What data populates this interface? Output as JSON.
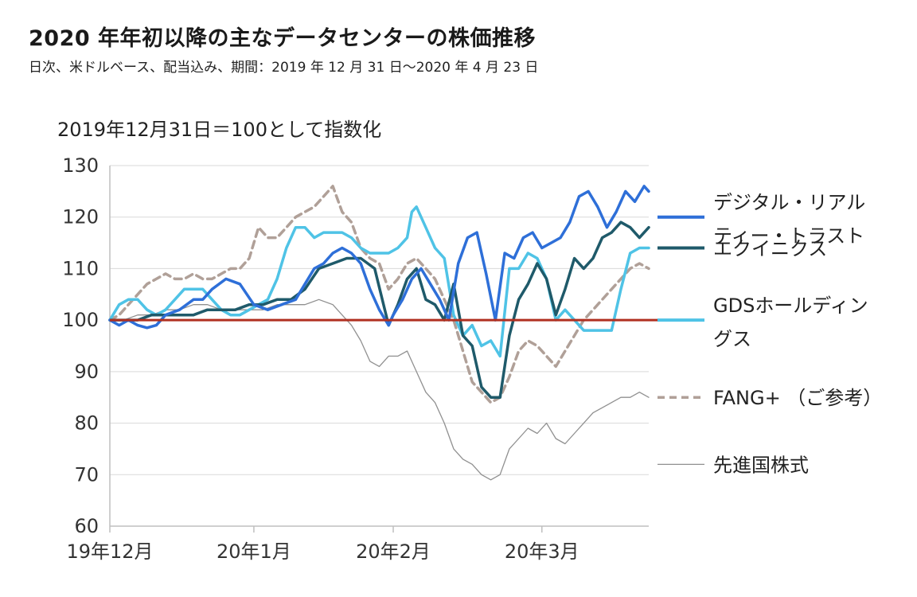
{
  "chart_data": {
    "type": "line",
    "title": "2020 年年初以降の主なデータセンターの株価推移",
    "subtitle": "日次、米ドルベース、配当込み、期間：2019 年 12 月 31 日～2020 年 4 月 23 日",
    "ylabel": "2019年12月31日＝100として指数化",
    "ylim": [
      60,
      130
    ],
    "yticks": [
      "130",
      "120",
      "110",
      "100",
      "90",
      "80",
      "70",
      "60"
    ],
    "xlim": [
      0,
      116
    ],
    "xticks": [
      {
        "label": "19年12月",
        "x": 0
      },
      {
        "label": "20年1月",
        "x": 31
      },
      {
        "label": "20年2月",
        "x": 61
      },
      {
        "label": "20年3月",
        "x": 93
      }
    ],
    "baseline": 100,
    "baseline_color": "#b03020",
    "legend_position": "right",
    "series": [
      {
        "name": "デジタル・リアルティー・トラスト",
        "name_lines": [
          "デジタル・リアル",
          "ティー・トラスト"
        ],
        "color": "#2e6fd8",
        "style": "solid",
        "x": [
          0,
          2,
          4,
          6,
          8,
          10,
          12,
          15,
          18,
          20,
          22,
          25,
          28,
          31,
          34,
          37,
          40,
          42,
          44,
          46,
          48,
          50,
          52,
          54,
          56,
          58,
          60,
          61,
          63,
          65,
          67,
          69,
          71,
          73,
          75,
          77,
          79,
          81,
          83,
          85,
          87,
          89,
          91,
          93,
          95,
          97,
          99,
          101,
          103,
          105,
          107,
          109,
          111,
          113,
          115,
          116
        ],
        "values": [
          100,
          99,
          100,
          99,
          98.5,
          99,
          101,
          102,
          104,
          104,
          106,
          108,
          107,
          103,
          102,
          103,
          104,
          107,
          110,
          111,
          113,
          114,
          113,
          111,
          106,
          102,
          99,
          101,
          104,
          108,
          110,
          107,
          104,
          100,
          111,
          116,
          117,
          109,
          100,
          113,
          112,
          116,
          117,
          114,
          115,
          116,
          119,
          124,
          125,
          122,
          118,
          121,
          125,
          123,
          126,
          125
        ],
        "legend_y": 120
      },
      {
        "name": "エクイニクス",
        "name_lines": [
          "エクイニクス"
        ],
        "color": "#1f5a6a",
        "style": "solid",
        "x": [
          0,
          3,
          6,
          9,
          12,
          15,
          18,
          21,
          24,
          27,
          30,
          33,
          36,
          39,
          42,
          45,
          48,
          51,
          54,
          57,
          60,
          62,
          64,
          66,
          68,
          70,
          72,
          74,
          76,
          78,
          80,
          82,
          84,
          86,
          88,
          90,
          92,
          94,
          96,
          98,
          100,
          102,
          104,
          106,
          108,
          110,
          112,
          114,
          116
        ],
        "values": [
          100,
          100,
          100,
          101,
          101,
          101,
          101,
          102,
          102,
          102,
          103,
          103,
          104,
          104,
          106,
          110,
          111,
          112,
          112,
          110,
          99,
          103,
          108,
          110,
          104,
          103,
          100,
          107,
          97,
          95,
          87,
          85,
          85,
          97,
          104,
          107,
          111,
          108,
          101,
          106,
          112,
          110,
          112,
          116,
          117,
          119,
          118,
          116,
          118
        ],
        "legend_y": 114
      },
      {
        "name": "GDSホールディングス",
        "name_lines": [
          "GDSホールディン",
          "グス"
        ],
        "color": "#4fc3e6",
        "style": "solid",
        "x": [
          0,
          2,
          4,
          6,
          8,
          10,
          12,
          14,
          16,
          18,
          20,
          22,
          24,
          26,
          28,
          30,
          32,
          34,
          36,
          38,
          40,
          42,
          44,
          46,
          48,
          50,
          52,
          54,
          56,
          58,
          60,
          62,
          64,
          65,
          66,
          68,
          70,
          72,
          74,
          76,
          78,
          80,
          82,
          84,
          86,
          88,
          90,
          92,
          94,
          96,
          98,
          100,
          102,
          104,
          106,
          108,
          110,
          112,
          114,
          116
        ],
        "values": [
          100,
          103,
          104,
          104,
          102,
          101,
          102,
          104,
          106,
          106,
          106,
          104,
          102,
          101,
          101,
          102,
          103,
          104,
          108,
          114,
          118,
          118,
          116,
          117,
          117,
          117,
          116,
          114,
          113,
          113,
          113,
          114,
          116,
          121,
          122,
          118,
          114,
          112,
          101,
          97,
          99,
          95,
          96,
          93,
          110,
          110,
          113,
          112,
          108,
          100,
          102,
          100,
          98,
          98,
          98,
          98,
          106,
          113,
          114,
          114
        ],
        "legend_y": 100
      },
      {
        "name": "FANG+（ご参考）",
        "name_lines": [
          "FANG+ （ご参考）"
        ],
        "color": "#b0a098",
        "style": "dashed",
        "x": [
          0,
          2,
          4,
          6,
          8,
          10,
          12,
          14,
          16,
          18,
          20,
          22,
          24,
          26,
          28,
          30,
          32,
          34,
          36,
          38,
          40,
          42,
          44,
          46,
          48,
          50,
          52,
          54,
          56,
          58,
          60,
          62,
          64,
          66,
          68,
          70,
          72,
          74,
          76,
          78,
          80,
          82,
          84,
          86,
          88,
          90,
          92,
          94,
          96,
          98,
          100,
          102,
          104,
          106,
          108,
          110,
          112,
          114,
          116
        ],
        "values": [
          100,
          101,
          103,
          105,
          107,
          108,
          109,
          108,
          108,
          109,
          108,
          108,
          109,
          110,
          110,
          112,
          118,
          116,
          116,
          118,
          120,
          121,
          122,
          124,
          126,
          121,
          119,
          114,
          112,
          111,
          106,
          108,
          111,
          112,
          110,
          108,
          104,
          100,
          94,
          88,
          86,
          84,
          85,
          89,
          94,
          96,
          95,
          93,
          91,
          94,
          97,
          100,
          102,
          104,
          106,
          108,
          110,
          111,
          110
        ],
        "legend_y": 85
      },
      {
        "name": "先進国株式",
        "name_lines": [
          "先進国株式"
        ],
        "color": "#909090",
        "style": "thin",
        "x": [
          0,
          3,
          6,
          9,
          12,
          15,
          18,
          21,
          24,
          27,
          30,
          33,
          36,
          39,
          42,
          45,
          48,
          50,
          52,
          54,
          56,
          58,
          60,
          62,
          64,
          66,
          68,
          70,
          72,
          74,
          76,
          78,
          80,
          82,
          84,
          86,
          88,
          90,
          92,
          94,
          96,
          98,
          100,
          102,
          104,
          106,
          108,
          110,
          112,
          114,
          116
        ],
        "values": [
          100,
          100,
          101,
          101,
          102,
          102,
          103,
          103,
          102,
          102,
          102,
          102,
          103,
          103,
          103,
          104,
          103,
          101,
          99,
          96,
          92,
          91,
          93,
          93,
          94,
          90,
          86,
          84,
          80,
          75,
          73,
          72,
          70,
          69,
          70,
          75,
          77,
          79,
          78,
          80,
          77,
          76,
          78,
          80,
          82,
          83,
          84,
          85,
          85,
          86,
          85
        ],
        "legend_y": 72
      }
    ]
  }
}
